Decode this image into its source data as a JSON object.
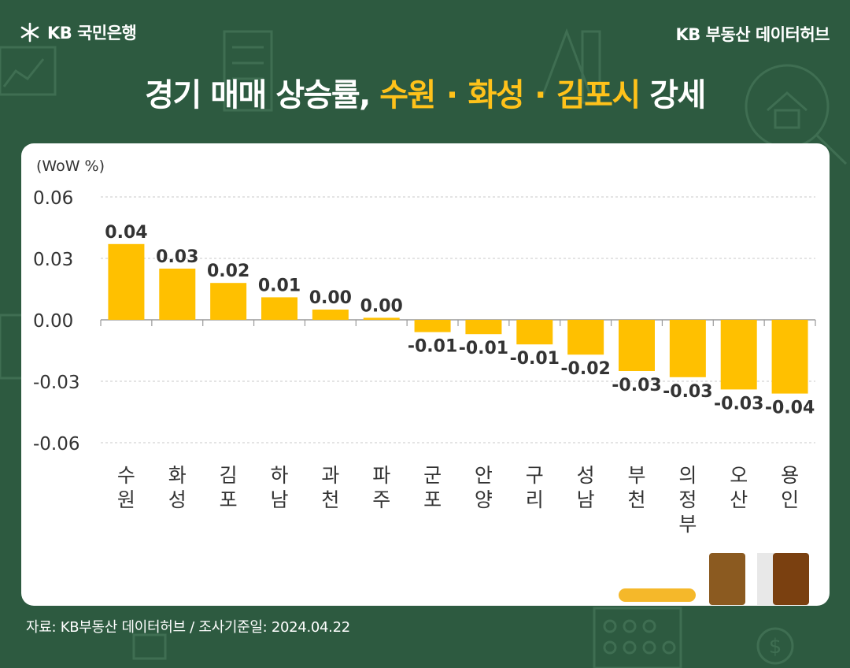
{
  "header": {
    "bank_name": "KB 국민은행",
    "hub_name": "KB 부동산  데이터허브"
  },
  "title": {
    "part1": "경기 매매 상승률, ",
    "hl1": "수원",
    "sep1": "·",
    "hl2": "화성",
    "sep2": "·",
    "hl3": "김포시",
    "part2": " 강세"
  },
  "source": "자료: KB부동산 데이터허브 / 조사기준일: 2024.04.22",
  "colors": {
    "background": "#2d5a40",
    "bar": "#ffc000",
    "accent": "#ffc21a",
    "brown1": "#8b5a20",
    "brown2": "#7a4010"
  },
  "icons": [
    "kb-star-icon",
    "house-icon",
    "calculator-icon",
    "dollar-icon",
    "ruler-icon"
  ],
  "chart_data": {
    "type": "bar",
    "unit_label": "(WoW %)",
    "categories": [
      "수원",
      "화성",
      "김포",
      "하남",
      "과천",
      "파주",
      "군포",
      "안양",
      "구리",
      "성남",
      "부천",
      "의정부",
      "오산",
      "용인"
    ],
    "values": [
      0.037,
      0.025,
      0.018,
      0.011,
      0.005,
      0.001,
      -0.006,
      -0.007,
      -0.012,
      -0.017,
      -0.025,
      -0.028,
      -0.034,
      -0.036
    ],
    "data_labels": [
      "0.04",
      "0.03",
      "0.02",
      "0.01",
      "0.00",
      "0.00",
      "-0.01",
      "-0.01",
      "-0.01",
      "-0.02",
      "-0.03",
      "-0.03",
      "-0.03",
      "-0.04"
    ],
    "yticks": [
      0.06,
      0.03,
      0.0,
      -0.03,
      -0.06
    ],
    "ytick_labels": [
      "0.06",
      "0.03",
      "0.00",
      "-0.03",
      "-0.06"
    ],
    "ylim": [
      -0.06,
      0.06
    ],
    "grid": true,
    "legend": "none"
  }
}
